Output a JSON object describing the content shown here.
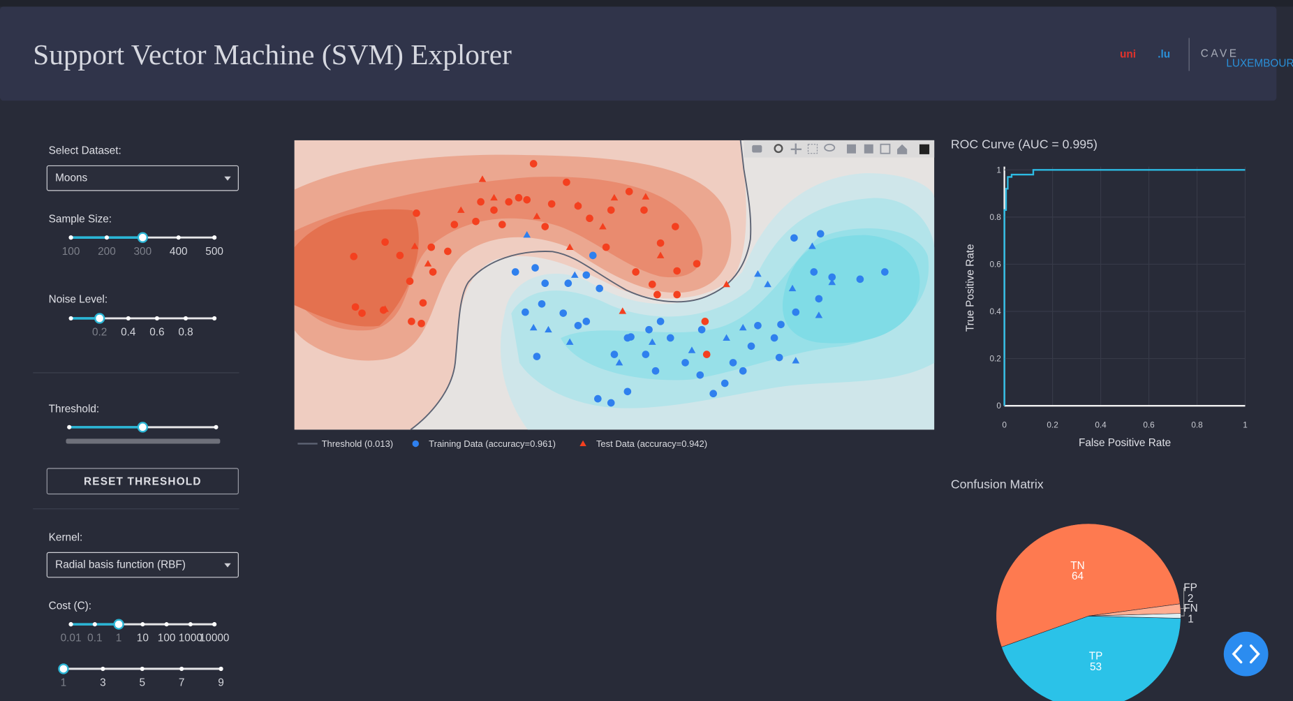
{
  "header": {
    "title": "Support Vector Machine (SVM) Explorer",
    "logo": {
      "left_a": "uni",
      "left_b": ".lu",
      "right": "CAVE",
      "right_sub": "LUXEMBOURG"
    }
  },
  "controls": {
    "dataset": {
      "label": "Select Dataset:",
      "value": "Moons"
    },
    "sample_size": {
      "label": "Sample Size:",
      "range": [
        100,
        500
      ],
      "marks": [
        100,
        200,
        300,
        400,
        500
      ],
      "value": 300
    },
    "noise": {
      "label": "Noise Level:",
      "range": [
        0,
        1
      ],
      "marks": [
        0.2,
        0.4,
        0.6,
        0.8
      ],
      "value": 0.2
    },
    "threshold": {
      "label": "Threshold:",
      "range": [
        0,
        1
      ],
      "value": 0.5
    },
    "reset_button": "RESET THRESHOLD",
    "kernel": {
      "label": "Kernel:",
      "value": "Radial basis function (RBF)"
    },
    "cost": {
      "label": "Cost (C):",
      "range": [
        0.01,
        10000
      ],
      "log": true,
      "marks": [
        0.01,
        0.1,
        1,
        10,
        100,
        1000,
        10000
      ],
      "value": 1
    },
    "degree": {
      "range": [
        1,
        9
      ],
      "marks": [
        1,
        3,
        5,
        7,
        9
      ],
      "value": 1
    }
  },
  "charts": [
    {
      "type": "scatter",
      "xlim": [
        -1.5,
        2.38
      ],
      "ylim": [
        -1.2,
        1.608
      ],
      "contour": {
        "name": "Threshold (0.013)",
        "color": "#5d6373"
      },
      "series": [
        {
          "name": "Training Data (accuracy=0.961)",
          "symbol": "circle",
          "groups": [
            {
              "color": "#2f80ee",
              "x": [
                1.53,
                1.69,
                2.08,
                1.93,
                1.76,
                1.65,
                1.68,
                1.54,
                1.45,
                1.41,
                1.44,
                1.31,
                1.27,
                1.22,
                1.11,
                1.04,
                0.96,
                0.87,
                0.78,
                0.72,
                0.65,
                0.52,
                0.44,
                0.34,
                0.42,
                0.52,
                0.63,
                0.69,
                0.27,
                0.22,
                0.13,
                0,
                -0.1,
                -0.03,
                -0.16,
                -0.04,
                0.02,
                0.16,
                0.27,
                0.35,
                0.31,
                0.54,
                0.97,
                1.16
              ],
              "y": [
                0.66,
                0.7,
                0.33,
                0.26,
                0.28,
                0.33,
                0.07,
                -0.06,
                -0.18,
                -0.31,
                -0.5,
                -0.19,
                -0.39,
                -0.63,
                -0.75,
                -0.85,
                -0.67,
                -0.55,
                -0.31,
                -0.15,
                -0.23,
                -0.31,
                -0.47,
                -0.9,
                -0.94,
                -0.83,
                -0.47,
                -0.63,
                -0.15,
                -0.19,
                -0.07,
                0.02,
                -0.06,
                -0.49,
                0.33,
                0.37,
                0.22,
                0.22,
                0.3,
                0.17,
                0.49,
                -0.3,
                -0.23,
                -0.55
              ]
            },
            {
              "color": "#f4401f",
              "x": [
                -0.05,
                0.15,
                -0.95,
                -1.14,
                -1.13,
                -1.09,
                -0.86,
                -0.8,
                -0.72,
                -0.79,
                -0.73,
                -0.67,
                -0.57,
                -0.53,
                -0.4,
                -0.29,
                -0.2,
                -0.14,
                0.06,
                0.22,
                0.29,
                0.42,
                0.53,
                0.62,
                0.72,
                0.81,
                0.82,
                0.94,
                0.7,
                0.82,
                0.99,
                1.0,
                -0.37,
                -0.09,
                -0.24,
                0.39,
                0.57,
                0.67,
                -0.76,
                -0.96,
                -0.66,
                0.02
              ],
              "y": [
                1.38,
                1.2,
                0.62,
                0.48,
                -0.01,
                -0.07,
                0.49,
                0.24,
                0.03,
                -0.15,
                -0.17,
                0.57,
                0.53,
                0.79,
                0.82,
                0.93,
                1.01,
                1.05,
                0.99,
                0.97,
                0.85,
                0.93,
                1.11,
                0.93,
                0.61,
                0.77,
                0.34,
                0.41,
                0.11,
                0.11,
                -0.15,
                -0.47,
                1.01,
                1.03,
                0.79,
                0.57,
                0.33,
                0.21,
                0.9,
                -0.04,
                0.33,
                0.77
              ]
            }
          ]
        },
        {
          "name": "Test Data (accuracy=0.942)",
          "symbol": "triangle-up",
          "groups": [
            {
              "color": "#f4401f",
              "x": [
                -0.36,
                -0.49,
                -0.29,
                -0.03,
                0.22,
                0.44,
                0.63,
                0.37,
                0.17,
                -0.77,
                -0.69,
                -0.95,
                1.12,
                0.49,
                0.72
              ],
              "y": [
                1.23,
                0.93,
                1.05,
                0.87,
                0.98,
                1.05,
                1.06,
                0.77,
                0.57,
                0.58,
                0.41,
                -0.03,
                0.21,
                -0.05,
                0.49
              ]
            },
            {
              "color": "#2f80ee",
              "x": [
                1.64,
                1.31,
                1.37,
                1.52,
                1.68,
                1.76,
                1.54,
                1.22,
                1.12,
                0.91,
                0.67,
                0.47,
                0.17,
                0.04,
                -0.05,
                0.2,
                -0.09
              ],
              "y": [
                0.58,
                0.31,
                0.21,
                0.17,
                -0.09,
                0.23,
                -0.53,
                -0.21,
                -0.31,
                -0.43,
                -0.35,
                -0.55,
                -0.35,
                -0.23,
                -0.21,
                0.3,
                0.69
              ]
            }
          ]
        }
      ]
    },
    {
      "type": "line",
      "title": "ROC Curve (AUC = 0.995)",
      "x_label": "False Positive Rate",
      "y_label": "True Positive Rate",
      "xlim": [
        0,
        1
      ],
      "ylim": [
        0,
        1
      ],
      "xticks": [
        0,
        0.2,
        0.4,
        0.6,
        0.8,
        1
      ],
      "yticks": [
        0,
        0.2,
        0.4,
        0.6,
        0.8,
        1
      ],
      "grid": true,
      "x": [
        0,
        0,
        0.007,
        0.007,
        0.014,
        0.014,
        0.03,
        0.03,
        0.12,
        0.12,
        1
      ],
      "series": [
        {
          "color": "#2dbbe3",
          "values": [
            0,
            0.83,
            0.83,
            0.92,
            0.92,
            0.97,
            0.97,
            0.98,
            0.98,
            1,
            1
          ]
        }
      ]
    },
    {
      "type": "pie",
      "title": "Confusion Matrix",
      "categories": [
        "TP",
        "TN",
        "FP",
        "FN"
      ],
      "values": [
        53,
        64,
        2,
        1
      ],
      "colors": [
        "#2bc2e8",
        "#fe7a50",
        "#ffae92",
        "#dceff3"
      ]
    }
  ]
}
